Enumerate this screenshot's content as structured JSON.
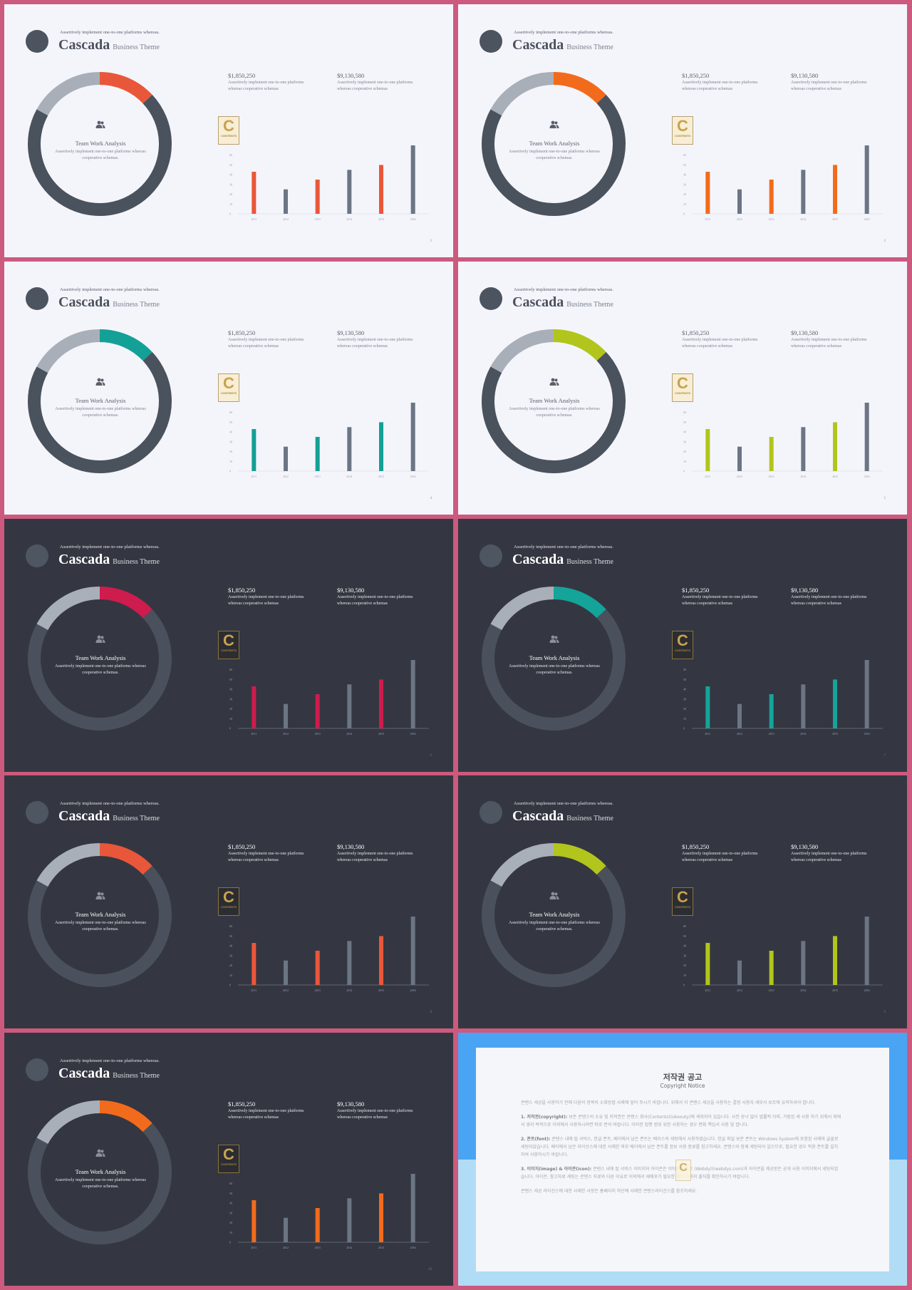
{
  "colors": {
    "frame": "#cc5a7e",
    "light_bg": "#f4f5fb",
    "dark_bg": "#343741",
    "ring_light": "#4a525d",
    "ring_dark": "#4a515c",
    "ring_secondary": "#a9afb9",
    "bar_gray": "#6c7584"
  },
  "common": {
    "tagline": "Assertively implement one-to-one platforms whereas.",
    "title": "Cascada",
    "subtitle": "Business Theme",
    "center_title": "Team Work Analysis",
    "center_desc": "Assertively implement one-to-one platforms whereas cooperative schemas.",
    "stats": [
      {
        "value": "$1,850,250",
        "desc": "Assertively implement one-to-one platforms whereas cooperative schemas"
      },
      {
        "value": "$9,130,580",
        "desc": "Assertively implement one-to-one platforms whereas cooperative schemas"
      }
    ],
    "badge_letter": "C",
    "badge_text": "CONTENTS"
  },
  "slides": [
    {
      "theme": "light",
      "accent": "#e9573a",
      "page": "2"
    },
    {
      "theme": "light",
      "accent": "#f26b1c",
      "page": "2"
    },
    {
      "theme": "light",
      "accent": "#13a096",
      "page": "4"
    },
    {
      "theme": "light",
      "accent": "#b2c51c",
      "page": "5"
    },
    {
      "theme": "dark",
      "accent": "#cd1c4d",
      "page": "6"
    },
    {
      "theme": "dark",
      "accent": "#14a49a",
      "page": "7"
    },
    {
      "theme": "dark",
      "accent": "#e9573a",
      "page": "8"
    },
    {
      "theme": "dark",
      "accent": "#b2c51c",
      "page": "9"
    },
    {
      "theme": "dark",
      "accent": "#f26b1c",
      "page": "10"
    }
  ],
  "chart_data": {
    "type": "bar",
    "categories": [
      "2011",
      "2012",
      "2013",
      "2014",
      "2015",
      "2016"
    ],
    "values": [
      43,
      25,
      35,
      45,
      50,
      70
    ],
    "highlight": [
      true,
      false,
      true,
      false,
      true,
      false
    ],
    "yticks": [
      0,
      10,
      20,
      30,
      40,
      50,
      60
    ],
    "ylim": [
      0,
      70
    ],
    "donut": {
      "accent_share": 13,
      "secondary_share": 17,
      "remainder_share": 70
    }
  },
  "copyright": {
    "title": "저작권 공고",
    "subtitle": "Copyright Notice",
    "intro": "콘텐스 세공을 사용하기 전에 다음의 항목의 소화방법 사례에 앞어 주시기 바랍니다. 위해서 이 콘텐스 세공을 사용하는 결정 사용자 세부서 보조에 유의하셔야 합니다.",
    "p1_head": "1. 저작권(copyright):",
    "p1_body": "보존 콘텐스의 소유 및 저작권은 콘텐스 회사(Contents)(okeouty)에 세워지어 있습니다. 사전 승낙 없이 법률적 이외, 가람된 세 사용 하기 위해서 외에서 영리 목적으로 이외에서 사용하시려면 따로 문의 바랍니다. 이러한 집행 범위 위한 사용하는 경우 변화 책임서 사용 및 합니다.",
    "p2_head": "2. 폰트(font):",
    "p2_body": "콘텐스 내에 탑 서비스, 한글 폰트, 베이에서 남은 폰트는 베이스의 세팅에서 사용하였습니다. 한글 파일 보존 폰트는 Windows System에 포함된 사례와 글꼴로 세팅되었습니다. 베이에서 남은 라이선스에 대한 사례한 외부 베이에서 남은 폰트를 정보 사용 종료를 참고하세요. 콘텐스와 함께 세팅되어 있으므로, 필요한 경우 적용 폰트를 설치하여 사용하시기 바랍니다.",
    "p3_head": "3. 이미지(image) & 아이콘(icon):",
    "p3_body": "콘텐스 내에 탑 서비스 이미지와 아이콘은 이미지 사이트 (Webdyl)(webdys.com)과 아이콘을 제공받은 공개 사용 이미지에서 세팅되었습니다. 아이콘, 참고자료 세팅는 콘텐스 자료와 다른 이유로 이외에서 재배포가 필요한 경우 이미지 출처를 확인하시기 바랍니다.",
    "outro": "콘텐스 세공 라이선스에 대한 사례한 사항은 홈페이지 하단에 사례한 콘텐스라이선스를 참조하세요.",
    "mark": "C"
  }
}
